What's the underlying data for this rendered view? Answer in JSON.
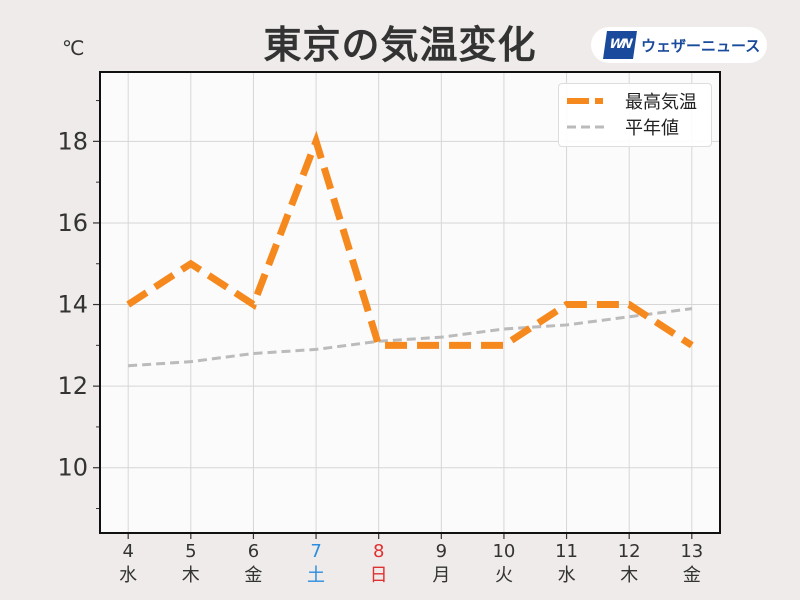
{
  "title": "東京の気温変化",
  "unit": "℃",
  "logo": {
    "mark": "WN",
    "text": "ウェザーニュース"
  },
  "chart_data": {
    "type": "line",
    "title": "東京の気温変化",
    "ylabel": "℃",
    "x": [
      4,
      5,
      6,
      7,
      8,
      9,
      10,
      11,
      12,
      13
    ],
    "x_tick_labels": [
      "4",
      "5",
      "6",
      "7",
      "8",
      "9",
      "10",
      "11",
      "12",
      "13"
    ],
    "x_weekday_labels": [
      "水",
      "木",
      "金",
      "土",
      "日",
      "月",
      "火",
      "水",
      "木",
      "金"
    ],
    "x_label_colors": [
      "#333333",
      "#333333",
      "#333333",
      "#2a8ee0",
      "#e03030",
      "#333333",
      "#333333",
      "#333333",
      "#333333",
      "#333333"
    ],
    "xlim": [
      3.55,
      13.45
    ],
    "ylim": [
      8.4,
      19.7
    ],
    "y_ticks": [
      10,
      12,
      14,
      16,
      18
    ],
    "grid": true,
    "legend_position": "top-right",
    "series": [
      {
        "name": "最高気温",
        "values": [
          14,
          15,
          14,
          18,
          13,
          13,
          13,
          14,
          14,
          13
        ],
        "color": "#f5891e",
        "style": "dashed"
      },
      {
        "name": "平年値",
        "values": [
          12.5,
          12.6,
          12.8,
          12.9,
          13.1,
          13.2,
          13.4,
          13.5,
          13.7,
          13.9
        ],
        "color": "#bbbbbb",
        "style": "dashed"
      }
    ]
  }
}
